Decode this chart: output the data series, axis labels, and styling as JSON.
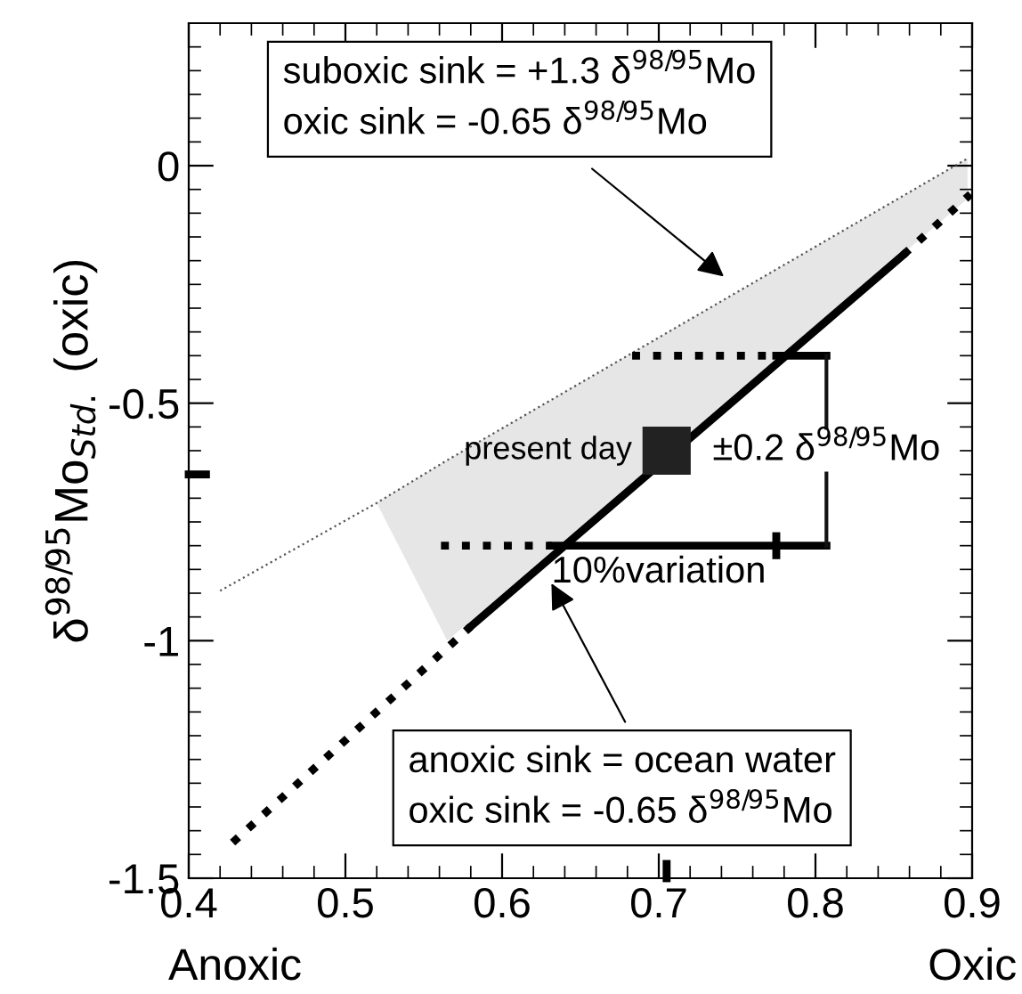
{
  "chart_data": {
    "type": "line",
    "ylabel": "δ$^{98/95}$Mo$_{Std.}$ (oxic)",
    "xlim": [
      0.4,
      0.9
    ],
    "ylim": [
      -1.5,
      0.3
    ],
    "xticks": [
      0.4,
      0.5,
      0.6,
      0.7,
      0.8,
      0.9
    ],
    "yticks": [
      -1.5,
      -1,
      -0.5,
      0
    ],
    "grid": false,
    "legend": false,
    "series": [
      {
        "color": "#555555",
        "line_style": "dotted",
        "x": [
          0.42,
          0.52,
          0.565,
          0.897
        ],
        "values": [
          -0.895,
          -0.71,
          -0.62,
          0.015
        ],
        "lower": [
          null,
          -0.71,
          -1.0,
          -0.07
        ],
        "upper": [
          null,
          -0.71,
          -0.62,
          0.015
        ]
      },
      {
        "color": "#000000",
        "line_style": "solid",
        "x": [
          0.58,
          0.856
        ],
        "values": [
          -0.97,
          -0.188
        ]
      },
      {
        "color": "#000000",
        "line_style": "dotted",
        "x": [
          0.428,
          0.58
        ],
        "values": [
          -1.425,
          -0.97
        ]
      },
      {
        "color": "#000000",
        "line_style": "dotted",
        "x": [
          0.856,
          0.899
        ],
        "values": [
          -0.188,
          -0.06
        ]
      },
      {
        "color": "#000000",
        "line_style": "dotted",
        "x": [
          0.683,
          0.775
        ],
        "values": [
          -0.4,
          -0.4
        ]
      },
      {
        "color": "#000000",
        "line_style": "solid",
        "x": [
          0.775,
          0.807
        ],
        "values": [
          -0.4,
          -0.4
        ]
      },
      {
        "color": "#000000",
        "line_style": "dotted",
        "x": [
          0.561,
          0.632
        ],
        "values": [
          -0.8,
          -0.8
        ]
      },
      {
        "color": "#000000",
        "line_style": "solid",
        "x": [
          0.632,
          0.807
        ],
        "values": [
          -0.8,
          -0.8
        ]
      },
      {
        "color": "#000000",
        "line_style": "solid",
        "x": [
          0.775,
          0.775
        ],
        "values": [
          -0.78,
          -0.82
        ]
      },
      {
        "color": "#111111",
        "line_style": "solid",
        "x": [
          0.807,
          0.807
        ],
        "values": [
          -0.4,
          -0.8
        ]
      },
      {
        "color": "#000000",
        "line_style": "solid",
        "x": [
          0.4,
          0.411
        ],
        "values": [
          -0.65,
          -0.65
        ]
      },
      {
        "color": "#000000",
        "line_style": "solid",
        "x": [
          0.705,
          0.705
        ],
        "values": [
          -1.5,
          -1.47
        ]
      },
      {
        "type": "scatter",
        "color": "#222222",
        "marker": "square",
        "x": [
          0.705
        ],
        "values": [
          -0.6
        ]
      }
    ],
    "annotations": [
      "suboxic sink = +1.3 δ$^{98/95}$Mo\noxic sink = -0.65 δ$^{98/95}$Mo",
      "anoxic sink = ocean water\noxic sink = -0.65 δ$^{98/95}$Mo",
      {
        "text": "present day",
        "x": 0.705,
        "y": -0.6
      },
      {
        "text": "±0.2 δ$^{98/95}$Mo",
        "x": 0.807,
        "y": -0.6
      },
      {
        "text": "10%variation",
        "x": 0.7,
        "y": -0.8
      },
      "Anoxic",
      "Oxic"
    ]
  }
}
